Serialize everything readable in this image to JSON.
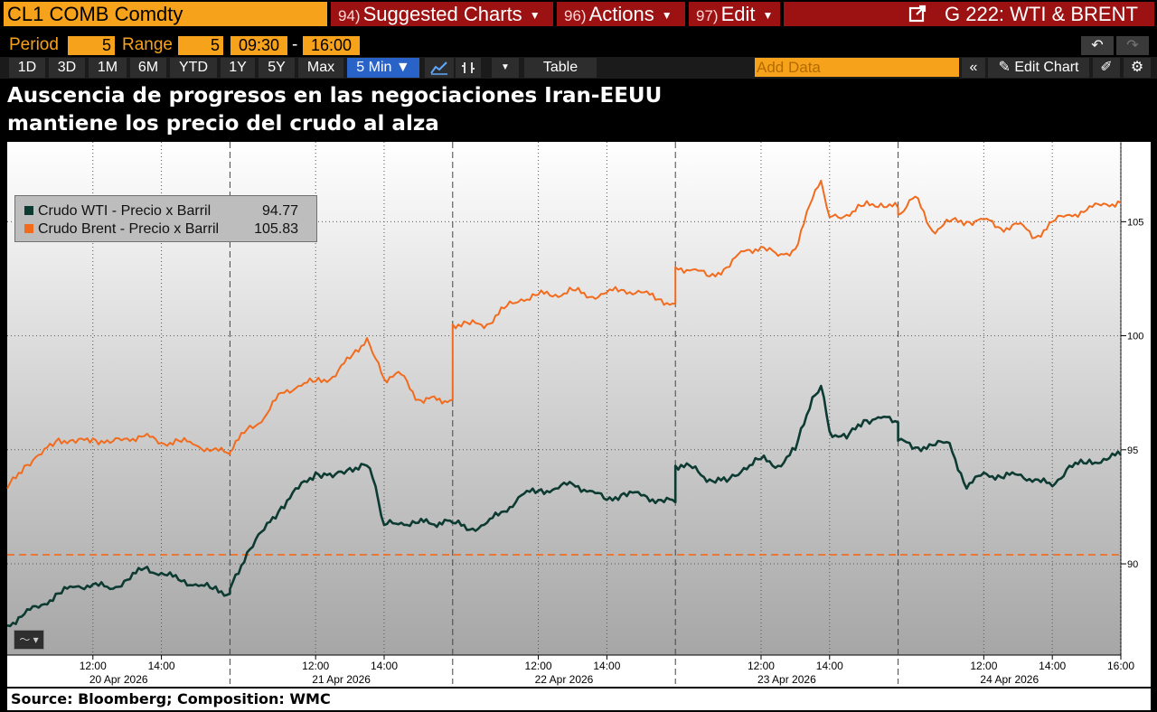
{
  "topbar": {
    "security": "CL1 COMB Comdty",
    "menus": [
      {
        "num": "94)",
        "label": "Suggested Charts"
      },
      {
        "num": "96)",
        "label": "Actions"
      },
      {
        "num": "97)",
        "label": "Edit"
      }
    ],
    "chart_id": "G 222: WTI & BRENT"
  },
  "controls": {
    "period_label": "Period",
    "period_value": "5",
    "range_label": "Range",
    "range_value": "5",
    "time_from": "09:30",
    "time_sep": "-",
    "time_to": "16:00"
  },
  "range_buttons": [
    "1D",
    "3D",
    "1M",
    "6M",
    "YTD",
    "1Y",
    "5Y",
    "Max",
    "5 Min ▼"
  ],
  "toolbar": {
    "table_label": "Table",
    "add_data_placeholder": "Add Data",
    "edit_chart_label": "Edit Chart"
  },
  "title_line1": "Auscencia de progresos en las negociaciones Iran-EEUU",
  "title_line2": "mantiene los precio del crudo al alza",
  "legend": {
    "wti_label": "Crudo WTI - Precio x Barril",
    "wti_value": "94.77",
    "brent_label": "Crudo Brent - Precio x Barril",
    "brent_value": "105.83"
  },
  "source": "Source: Bloomberg; Composition: WMC",
  "colors": {
    "wti": "#0d3b32",
    "brent": "#f26b1d",
    "reference_line": "#f26b1d",
    "accent": "#f7a21b",
    "menu_red": "#9c1212"
  },
  "chart_data": {
    "type": "line",
    "title": "Auscencia de progresos en las negociaciones Iran-EEUU mantiene los precio del crudo al alza",
    "xlabel": "",
    "ylabel": "",
    "ylim": [
      86,
      108.5
    ],
    "yticks": [
      90,
      95,
      100,
      105
    ],
    "y_axis_side": "right",
    "x_tick_labels": [
      "12:00",
      "14:00",
      "12:00",
      "14:00",
      "12:00",
      "14:00",
      "12:00",
      "14:00",
      "12:00",
      "14:00",
      "16:00"
    ],
    "day_labels": [
      "20 Apr 2026",
      "21 Apr 2026",
      "22 Apr 2026",
      "23 Apr 2026",
      "24 Apr 2026"
    ],
    "session": "09:30-16:00",
    "interval": "5 Min",
    "reference_line": {
      "y": 90.4,
      "style": "dashed"
    },
    "grid": true,
    "legend_position": "top-left",
    "series": [
      {
        "name": "Crudo WTI - Precio x Barril",
        "last": 94.77,
        "points": [
          [
            "20 Apr 09:30",
            87.3
          ],
          [
            "20 Apr 10:00",
            87.8
          ],
          [
            "20 Apr 10:30",
            88.2
          ],
          [
            "20 Apr 11:00",
            88.7
          ],
          [
            "20 Apr 11:30",
            89.0
          ],
          [
            "20 Apr 12:00",
            89.1
          ],
          [
            "20 Apr 12:30",
            88.9
          ],
          [
            "20 Apr 13:00",
            89.3
          ],
          [
            "20 Apr 13:30",
            89.8
          ],
          [
            "20 Apr 14:00",
            89.6
          ],
          [
            "20 Apr 14:30",
            89.3
          ],
          [
            "20 Apr 15:00",
            89.1
          ],
          [
            "20 Apr 15:30",
            88.9
          ],
          [
            "20 Apr 16:00",
            88.7
          ],
          [
            "21 Apr 09:30",
            88.9
          ],
          [
            "21 Apr 10:00",
            90.5
          ],
          [
            "21 Apr 10:30",
            91.5
          ],
          [
            "21 Apr 11:00",
            92.5
          ],
          [
            "21 Apr 11:30",
            93.3
          ],
          [
            "21 Apr 12:00",
            94.0
          ],
          [
            "21 Apr 12:30",
            93.8
          ],
          [
            "21 Apr 13:00",
            94.2
          ],
          [
            "21 Apr 13:30",
            94.3
          ],
          [
            "21 Apr 13:45",
            93.4
          ],
          [
            "21 Apr 14:00",
            91.7
          ],
          [
            "21 Apr 14:30",
            91.8
          ],
          [
            "21 Apr 15:00",
            91.8
          ],
          [
            "21 Apr 16:00",
            91.8
          ],
          [
            "22 Apr 09:30",
            91.8
          ],
          [
            "22 Apr 10:00",
            91.5
          ],
          [
            "22 Apr 10:30",
            91.8
          ],
          [
            "22 Apr 11:00",
            92.3
          ],
          [
            "22 Apr 11:30",
            93.0
          ],
          [
            "22 Apr 12:00",
            93.2
          ],
          [
            "22 Apr 12:30",
            93.3
          ],
          [
            "22 Apr 13:00",
            93.5
          ],
          [
            "22 Apr 13:30",
            93.2
          ],
          [
            "22 Apr 14:00",
            92.8
          ],
          [
            "22 Apr 14:30",
            93.1
          ],
          [
            "22 Apr 15:00",
            93.0
          ],
          [
            "22 Apr 15:30",
            92.8
          ],
          [
            "22 Apr 16:00",
            92.7
          ],
          [
            "23 Apr 09:30",
            94.3
          ],
          [
            "23 Apr 10:00",
            94.2
          ],
          [
            "23 Apr 10:30",
            93.7
          ],
          [
            "23 Apr 11:00",
            93.6
          ],
          [
            "23 Apr 11:30",
            94.2
          ],
          [
            "23 Apr 12:00",
            94.6
          ],
          [
            "23 Apr 12:30",
            94.3
          ],
          [
            "23 Apr 13:00",
            95.0
          ],
          [
            "23 Apr 13:30",
            97.3
          ],
          [
            "23 Apr 13:45",
            97.8
          ],
          [
            "23 Apr 14:00",
            95.8
          ],
          [
            "23 Apr 14:30",
            95.5
          ],
          [
            "23 Apr 15:00",
            96.3
          ],
          [
            "23 Apr 15:30",
            96.4
          ],
          [
            "23 Apr 16:00",
            96.2
          ],
          [
            "24 Apr 09:30",
            95.4
          ],
          [
            "24 Apr 10:00",
            95.1
          ],
          [
            "24 Apr 10:30",
            95.2
          ],
          [
            "24 Apr 11:00",
            95.3
          ],
          [
            "24 Apr 11:30",
            93.3
          ],
          [
            "24 Apr 12:00",
            94.0
          ],
          [
            "24 Apr 12:30",
            93.8
          ],
          [
            "24 Apr 13:00",
            93.9
          ],
          [
            "24 Apr 13:30",
            93.7
          ],
          [
            "24 Apr 14:00",
            93.4
          ],
          [
            "24 Apr 14:30",
            94.3
          ],
          [
            "24 Apr 15:00",
            94.4
          ],
          [
            "24 Apr 15:30",
            94.6
          ],
          [
            "24 Apr 16:00",
            94.77
          ]
        ]
      },
      {
        "name": "Crudo Brent - Precio x Barril",
        "last": 105.83,
        "points": [
          [
            "20 Apr 09:30",
            93.3
          ],
          [
            "20 Apr 10:00",
            94.3
          ],
          [
            "20 Apr 10:30",
            94.8
          ],
          [
            "20 Apr 11:00",
            95.5
          ],
          [
            "20 Apr 11:30",
            95.3
          ],
          [
            "20 Apr 12:00",
            95.5
          ],
          [
            "20 Apr 12:30",
            95.3
          ],
          [
            "20 Apr 13:00",
            95.5
          ],
          [
            "20 Apr 13:30",
            95.6
          ],
          [
            "20 Apr 14:00",
            95.3
          ],
          [
            "20 Apr 14:30",
            95.4
          ],
          [
            "20 Apr 15:00",
            95.2
          ],
          [
            "20 Apr 15:30",
            95.0
          ],
          [
            "20 Apr 16:00",
            94.8
          ],
          [
            "21 Apr 09:30",
            94.9
          ],
          [
            "21 Apr 10:00",
            95.9
          ],
          [
            "21 Apr 10:30",
            96.4
          ],
          [
            "21 Apr 11:00",
            97.5
          ],
          [
            "21 Apr 11:30",
            97.8
          ],
          [
            "21 Apr 12:00",
            98.0
          ],
          [
            "21 Apr 12:30",
            98.2
          ],
          [
            "21 Apr 13:00",
            99.0
          ],
          [
            "21 Apr 13:30",
            99.9
          ],
          [
            "21 Apr 13:45",
            99.0
          ],
          [
            "21 Apr 14:00",
            98.1
          ],
          [
            "21 Apr 14:30",
            98.3
          ],
          [
            "21 Apr 15:00",
            97.2
          ],
          [
            "21 Apr 16:00",
            97.2
          ],
          [
            "22 Apr 09:30",
            100.5
          ],
          [
            "22 Apr 10:00",
            100.5
          ],
          [
            "22 Apr 10:30",
            100.5
          ],
          [
            "22 Apr 11:00",
            101.2
          ],
          [
            "22 Apr 11:30",
            101.6
          ],
          [
            "22 Apr 12:00",
            101.8
          ],
          [
            "22 Apr 12:30",
            101.8
          ],
          [
            "22 Apr 13:00",
            102.0
          ],
          [
            "22 Apr 13:30",
            101.7
          ],
          [
            "22 Apr 14:00",
            101.9
          ],
          [
            "22 Apr 14:30",
            102.0
          ],
          [
            "22 Apr 15:00",
            101.9
          ],
          [
            "22 Apr 15:30",
            101.6
          ],
          [
            "22 Apr 16:00",
            101.4
          ],
          [
            "23 Apr 09:30",
            103.0
          ],
          [
            "23 Apr 10:00",
            102.9
          ],
          [
            "23 Apr 10:30",
            102.6
          ],
          [
            "23 Apr 11:00",
            103.0
          ],
          [
            "23 Apr 11:30",
            103.7
          ],
          [
            "23 Apr 12:00",
            103.9
          ],
          [
            "23 Apr 12:30",
            103.5
          ],
          [
            "23 Apr 13:00",
            103.8
          ],
          [
            "23 Apr 13:30",
            106.0
          ],
          [
            "23 Apr 13:45",
            106.8
          ],
          [
            "23 Apr 14:00",
            105.2
          ],
          [
            "23 Apr 14:30",
            105.3
          ],
          [
            "23 Apr 15:00",
            105.7
          ],
          [
            "23 Apr 15:30",
            105.8
          ],
          [
            "23 Apr 16:00",
            105.6
          ],
          [
            "24 Apr 09:30",
            105.3
          ],
          [
            "24 Apr 10:00",
            106.1
          ],
          [
            "24 Apr 10:30",
            104.6
          ],
          [
            "24 Apr 11:00",
            105.0
          ],
          [
            "24 Apr 11:30",
            105.0
          ],
          [
            "24 Apr 12:00",
            105.1
          ],
          [
            "24 Apr 12:30",
            104.7
          ],
          [
            "24 Apr 13:00",
            104.9
          ],
          [
            "24 Apr 13:30",
            104.3
          ],
          [
            "24 Apr 14:00",
            105.0
          ],
          [
            "24 Apr 14:30",
            105.3
          ],
          [
            "24 Apr 15:00",
            105.5
          ],
          [
            "24 Apr 15:30",
            105.8
          ],
          [
            "24 Apr 16:00",
            105.83
          ]
        ]
      }
    ]
  }
}
